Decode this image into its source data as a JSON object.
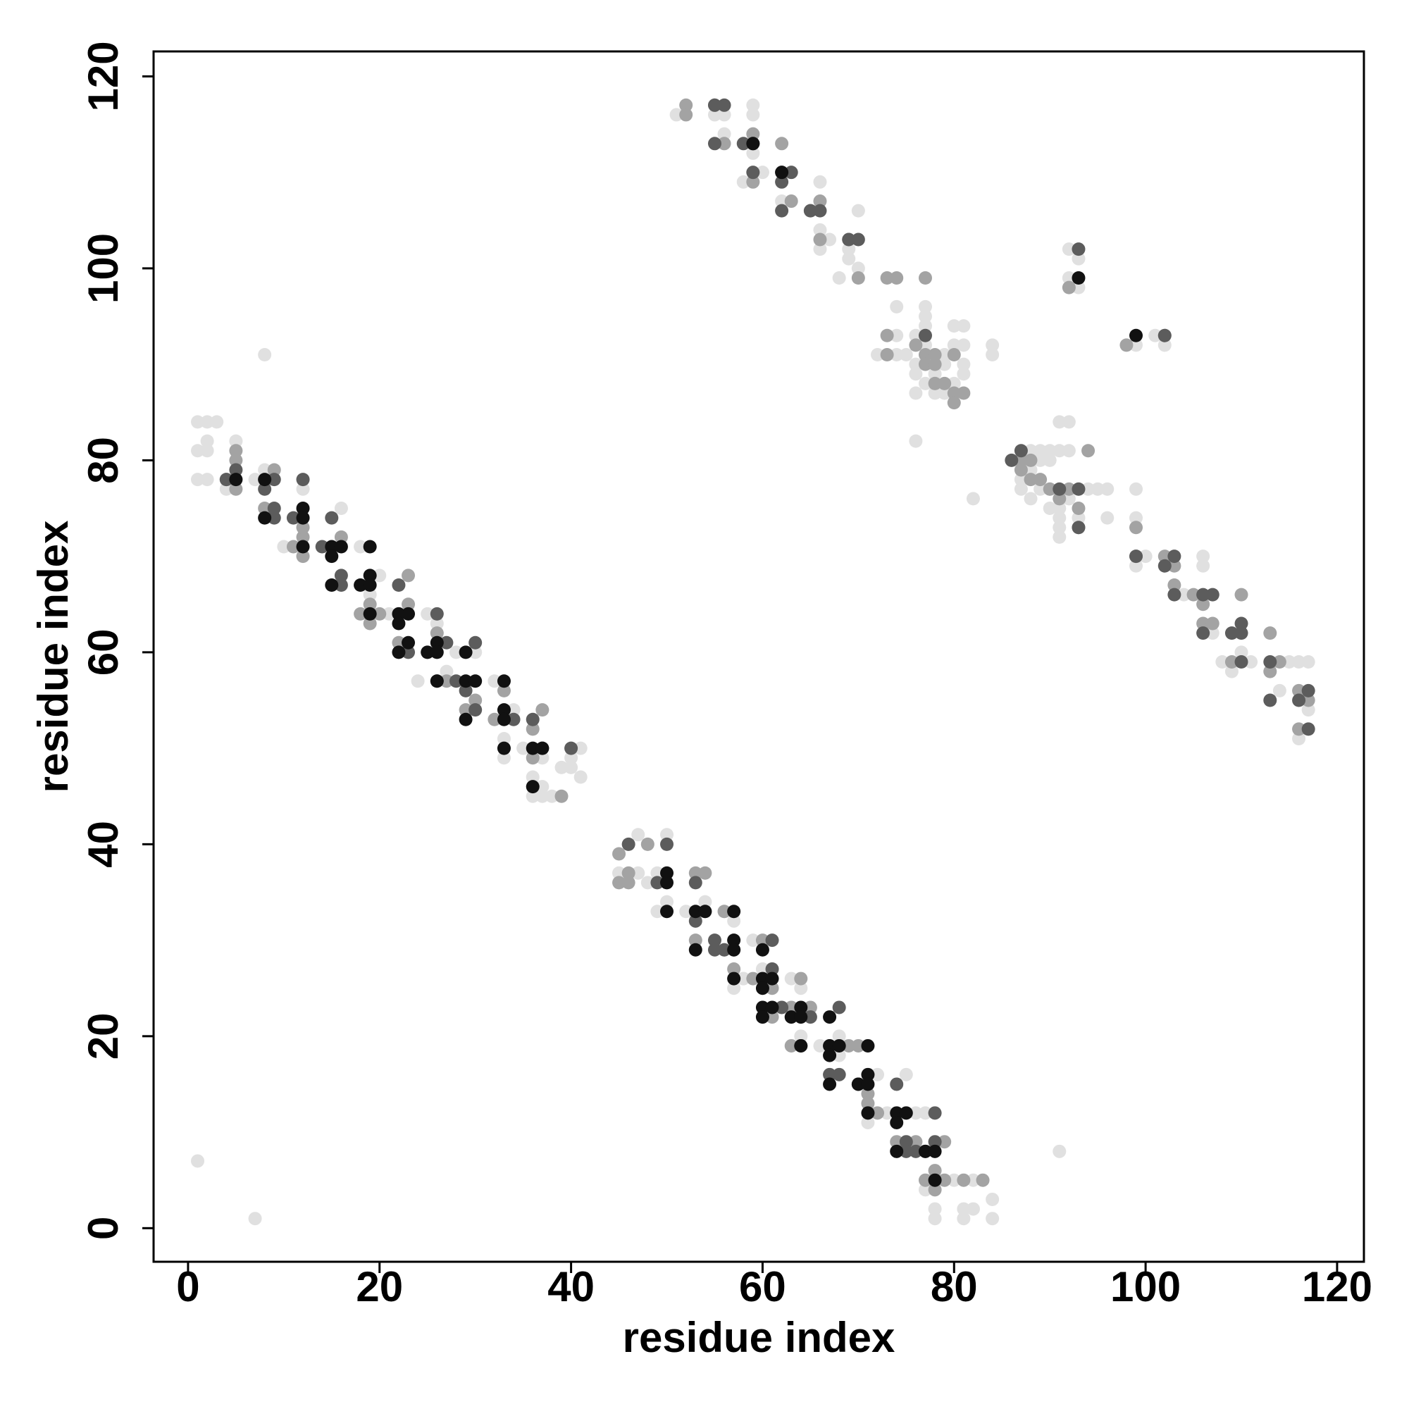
{
  "chart_data": {
    "type": "scatter",
    "xlabel": "residue index",
    "ylabel": "residue index",
    "xlim": [
      -3.6,
      122.8
    ],
    "ylim": [
      -3.5,
      122.6
    ],
    "xticks": [
      0,
      20,
      40,
      60,
      80,
      100,
      120
    ],
    "yticks": [
      0,
      20,
      40,
      60,
      80,
      100,
      120
    ],
    "series": [
      {
        "color": "#e0e0e0",
        "x": [
          1,
          2,
          3,
          1,
          2,
          2,
          1,
          2,
          4,
          5,
          7,
          8,
          16,
          12,
          10,
          18,
          20,
          19,
          21,
          25,
          26,
          28,
          30,
          24,
          27,
          32,
          33,
          33,
          35,
          34,
          37,
          36,
          37,
          36,
          37,
          38,
          39,
          40,
          41,
          40,
          41,
          1,
          7,
          8,
          40,
          47,
          50,
          46,
          48,
          45,
          47,
          49,
          48,
          49,
          50,
          54,
          52,
          56,
          57,
          59,
          60,
          58,
          57,
          63,
          64,
          64,
          66,
          68,
          68,
          72,
          75,
          71,
          71,
          73,
          76,
          77,
          77,
          78,
          78,
          81,
          82,
          81,
          84,
          84,
          80,
          82,
          91,
          58,
          61,
          51,
          55,
          56,
          56,
          59,
          59,
          59,
          58,
          60,
          62,
          66,
          66,
          67,
          66,
          69,
          70,
          69,
          70,
          68,
          74,
          74,
          72,
          74,
          75,
          76,
          77,
          77,
          77,
          77,
          76,
          76,
          76,
          77,
          78,
          78,
          79,
          79,
          79,
          80,
          80,
          81,
          81,
          81,
          81,
          80,
          84,
          84,
          76,
          92,
          93,
          92,
          93,
          88,
          89,
          90,
          90,
          91,
          91,
          92,
          92,
          89,
          88,
          87,
          87,
          89,
          88,
          90,
          90,
          91,
          91,
          91,
          91,
          93,
          94,
          95,
          96,
          96,
          92,
          93,
          82,
          99,
          100,
          102,
          101,
          99,
          104,
          106,
          106,
          107,
          107,
          109,
          108,
          110,
          111,
          114,
          115,
          116,
          117,
          116,
          117,
          99,
          99
        ],
        "values": [
          84,
          84,
          84,
          81,
          82,
          81,
          78,
          78,
          77,
          82,
          78,
          79,
          75,
          77,
          71,
          71,
          68,
          66,
          64,
          64,
          63,
          60,
          60,
          57,
          58,
          57,
          51,
          49,
          50,
          54,
          49,
          47,
          46,
          45,
          45,
          45,
          48,
          49,
          47,
          50,
          50,
          7,
          1,
          91,
          48,
          41,
          41,
          40,
          40,
          37,
          37,
          37,
          36,
          33,
          34,
          34,
          33,
          33,
          32,
          30,
          27,
          26,
          25,
          26,
          25,
          20,
          19,
          20,
          18,
          16,
          16,
          13,
          11,
          12,
          12,
          12,
          4,
          2,
          1,
          2,
          2,
          1,
          3,
          1,
          5,
          5,
          8,
          26,
          27,
          116,
          116,
          114,
          116,
          117,
          116,
          112,
          109,
          110,
          107,
          109,
          104,
          103,
          102,
          102,
          106,
          101,
          100,
          99,
          93,
          96,
          91,
          91,
          91,
          93,
          96,
          95,
          94,
          92,
          90,
          89,
          87,
          88,
          87,
          89,
          87,
          90,
          91,
          92,
          94,
          94,
          92,
          90,
          89,
          88,
          92,
          91,
          82,
          102,
          101,
          99,
          98,
          81,
          81,
          81,
          80,
          81,
          84,
          84,
          81,
          80,
          79,
          78,
          77,
          77,
          76,
          77,
          75,
          75,
          74,
          73,
          72,
          74,
          77,
          77,
          77,
          74,
          76,
          77,
          76,
          69,
          70,
          92,
          93,
          92,
          66,
          70,
          69,
          66,
          62,
          58,
          59,
          60,
          59,
          56,
          59,
          59,
          59,
          51,
          54,
          77,
          74
        ]
      },
      {
        "color": "#a3a3a3",
        "x": [
          5,
          5,
          5,
          4,
          8,
          9,
          12,
          12,
          11,
          12,
          16,
          18,
          19,
          19,
          22,
          23,
          23,
          25,
          27,
          29,
          30,
          33,
          36,
          37,
          36,
          39,
          26,
          22,
          20,
          32,
          45,
          48,
          45,
          46,
          46,
          53,
          54,
          54,
          53,
          56,
          56,
          57,
          59,
          61,
          60,
          61,
          63,
          64,
          63,
          65,
          67,
          69,
          70,
          71,
          71,
          72,
          74,
          76,
          77,
          79,
          79,
          81,
          83,
          78,
          78,
          60,
          52,
          52,
          55,
          56,
          59,
          59,
          62,
          62,
          63,
          65,
          66,
          66,
          69,
          70,
          73,
          74,
          77,
          73,
          73,
          76,
          77,
          77,
          78,
          78,
          79,
          80,
          81,
          80,
          80,
          92,
          78,
          87,
          87,
          88,
          89,
          88,
          90,
          91,
          92,
          93,
          93,
          94,
          99,
          98,
          102,
          102,
          103,
          105,
          106,
          106,
          107,
          110,
          109,
          113,
          113,
          114,
          116,
          117,
          116,
          99,
          103
        ],
        "values": [
          81,
          80,
          77,
          78,
          75,
          79,
          72,
          73,
          71,
          70,
          72,
          64,
          63,
          65,
          64,
          65,
          68,
          60,
          57,
          54,
          55,
          56,
          52,
          54,
          49,
          45,
          62,
          61,
          64,
          53,
          39,
          40,
          36,
          37,
          36,
          37,
          37,
          33,
          30,
          29,
          33,
          27,
          26,
          25,
          22,
          22,
          23,
          26,
          19,
          23,
          19,
          19,
          19,
          14,
          13,
          12,
          9,
          9,
          5,
          9,
          5,
          5,
          5,
          6,
          4,
          30,
          117,
          116,
          117,
          113,
          114,
          109,
          113,
          110,
          107,
          106,
          107,
          103,
          103,
          99,
          99,
          99,
          99,
          93,
          91,
          92,
          91,
          90,
          90,
          91,
          88,
          87,
          87,
          86,
          91,
          98,
          88,
          80,
          79,
          80,
          78,
          78,
          77,
          76,
          77,
          75,
          73,
          81,
          73,
          92,
          93,
          70,
          67,
          66,
          65,
          63,
          63,
          66,
          59,
          62,
          58,
          59,
          56,
          55,
          52,
          70,
          69
        ]
      },
      {
        "color": "#5c5c5c",
        "x": [
          4,
          5,
          8,
          9,
          9,
          9,
          11,
          12,
          14,
          15,
          16,
          16,
          22,
          23,
          26,
          27,
          28,
          30,
          30,
          26,
          29,
          37,
          40,
          36,
          34,
          46,
          49,
          50,
          53,
          53,
          55,
          56,
          57,
          61,
          61,
          62,
          64,
          65,
          67,
          68,
          68,
          70,
          74,
          75,
          75,
          76,
          78,
          78,
          77,
          55,
          55,
          55,
          56,
          58,
          59,
          59,
          62,
          62,
          63,
          65,
          66,
          69,
          70,
          77,
          93,
          86,
          87,
          91,
          93,
          93,
          99,
          102,
          103,
          103,
          106,
          106,
          107,
          109,
          110,
          110,
          110,
          113,
          113,
          116,
          117,
          117,
          102
        ],
        "values": [
          78,
          79,
          77,
          78,
          75,
          74,
          74,
          78,
          71,
          74,
          68,
          67,
          67,
          60,
          64,
          61,
          57,
          61,
          54,
          57,
          56,
          50,
          50,
          53,
          53,
          40,
          36,
          40,
          36,
          32,
          30,
          29,
          29,
          30,
          27,
          23,
          19,
          22,
          16,
          16,
          23,
          15,
          15,
          9,
          8,
          8,
          12,
          9,
          8,
          29,
          117,
          113,
          117,
          113,
          113,
          110,
          109,
          106,
          110,
          106,
          106,
          103,
          103,
          93,
          102,
          80,
          81,
          77,
          77,
          73,
          70,
          69,
          70,
          66,
          66,
          62,
          66,
          62,
          63,
          62,
          59,
          59,
          55,
          55,
          56,
          52,
          93
        ]
      },
      {
        "color": "#111111",
        "x": [
          5,
          8,
          8,
          12,
          12,
          12,
          15,
          15,
          16,
          15,
          18,
          19,
          19,
          19,
          19,
          22,
          23,
          22,
          22,
          23,
          25,
          26,
          26,
          26,
          29,
          29,
          30,
          29,
          33,
          33,
          33,
          33,
          36,
          37,
          36,
          50,
          50,
          50,
          53,
          54,
          57,
          53,
          57,
          57,
          57,
          60,
          60,
          61,
          60,
          60,
          61,
          60,
          63,
          64,
          64,
          64,
          67,
          67,
          68,
          67,
          67,
          70,
          71,
          71,
          71,
          71,
          74,
          75,
          74,
          74,
          77,
          78,
          78,
          59,
          62,
          93,
          99
        ],
        "values": [
          78,
          78,
          74,
          75,
          74,
          71,
          71,
          70,
          71,
          67,
          67,
          71,
          68,
          67,
          64,
          64,
          64,
          63,
          60,
          61,
          60,
          61,
          60,
          57,
          60,
          57,
          57,
          53,
          57,
          54,
          53,
          50,
          50,
          50,
          46,
          37,
          36,
          33,
          33,
          33,
          33,
          29,
          30,
          29,
          26,
          29,
          26,
          26,
          25,
          23,
          23,
          22,
          22,
          23,
          22,
          19,
          22,
          19,
          19,
          18,
          15,
          15,
          16,
          15,
          19,
          12,
          12,
          12,
          11,
          8,
          8,
          8,
          5,
          113,
          110,
          99,
          93
        ]
      }
    ]
  }
}
